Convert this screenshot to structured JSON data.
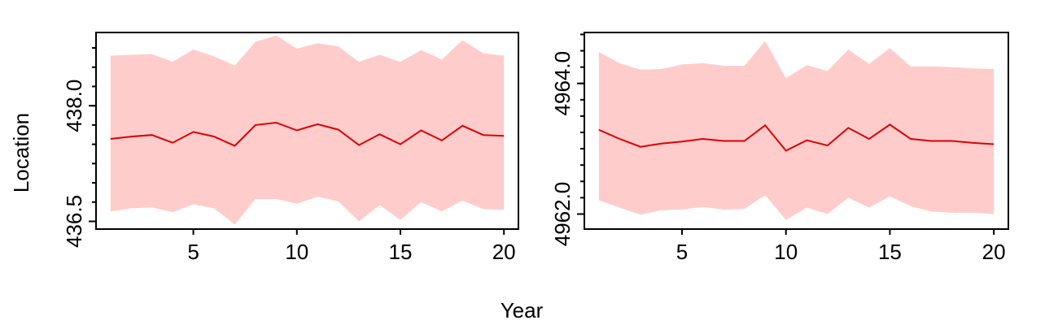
{
  "ylabel": "Location",
  "xlabel": "Year",
  "chart_data": [
    {
      "type": "line",
      "series": [
        {
          "values": [
            437.57,
            437.6,
            437.62,
            437.52,
            437.66,
            437.6,
            437.48,
            437.75,
            437.78,
            437.68,
            437.76,
            437.69,
            437.49,
            437.63,
            437.5,
            437.68,
            437.55,
            437.74,
            437.62,
            437.61
          ],
          "lower": [
            436.63,
            436.67,
            436.68,
            436.62,
            436.72,
            436.67,
            436.46,
            436.79,
            436.79,
            436.73,
            436.82,
            436.76,
            436.5,
            436.71,
            436.52,
            436.75,
            436.63,
            436.77,
            436.66,
            436.65
          ],
          "upper": [
            438.65,
            438.66,
            438.67,
            438.57,
            438.73,
            438.64,
            438.52,
            438.83,
            438.91,
            438.74,
            438.81,
            438.77,
            438.57,
            438.66,
            438.57,
            438.72,
            438.6,
            438.85,
            438.68,
            438.65
          ]
        }
      ],
      "x": [
        1,
        2,
        3,
        4,
        5,
        6,
        7,
        8,
        9,
        10,
        11,
        12,
        13,
        14,
        15,
        16,
        17,
        18,
        19,
        20
      ],
      "xticks": [
        "5",
        "10",
        "15",
        "20"
      ],
      "yticks": [
        "436.5",
        "438.0"
      ],
      "xlim": [
        0.3,
        20.7
      ],
      "ylim": [
        436.4,
        438.95
      ],
      "band_color": "#ffcccc",
      "line_color": "#dd0000"
    },
    {
      "type": "line",
      "series": [
        {
          "values": [
            4963.29,
            4963.15,
            4963.03,
            4963.08,
            4963.11,
            4963.15,
            4963.12,
            4963.12,
            4963.36,
            4962.97,
            4963.13,
            4963.05,
            4963.32,
            4963.15,
            4963.37,
            4963.15,
            4963.12,
            4963.12,
            4963.09,
            4963.07
          ],
          "lower": [
            4962.21,
            4962.1,
            4961.99,
            4962.06,
            4962.07,
            4962.11,
            4962.07,
            4962.08,
            4962.29,
            4961.91,
            4962.1,
            4962.0,
            4962.25,
            4962.1,
            4962.27,
            4962.12,
            4962.04,
            4962.02,
            4962.02,
            4962.0
          ],
          "upper": [
            4964.48,
            4964.31,
            4964.21,
            4964.22,
            4964.29,
            4964.31,
            4964.27,
            4964.27,
            4964.65,
            4964.08,
            4964.28,
            4964.19,
            4964.52,
            4964.3,
            4964.54,
            4964.26,
            4964.26,
            4964.25,
            4964.23,
            4964.22
          ]
        }
      ],
      "x": [
        1,
        2,
        3,
        4,
        5,
        6,
        7,
        8,
        9,
        10,
        11,
        12,
        13,
        14,
        15,
        16,
        17,
        18,
        19,
        20
      ],
      "xticks": [
        "5",
        "10",
        "15",
        "20"
      ],
      "yticks": [
        "4962.0",
        "4964.0"
      ],
      "xlim": [
        0.3,
        20.7
      ],
      "ylim": [
        4961.77,
        4964.78
      ],
      "band_color": "#ffcccc",
      "line_color": "#dd0000"
    }
  ]
}
